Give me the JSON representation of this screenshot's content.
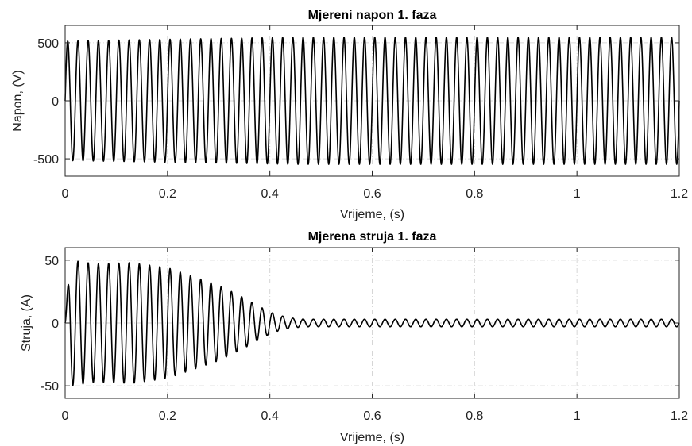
{
  "chart_data": [
    {
      "type": "line",
      "title": "Mjereni napon 1. faza",
      "xlabel": "Vrijeme, (s)",
      "ylabel": "Napon, (V)",
      "xlim": [
        0,
        1.2
      ],
      "ylim": [
        -650,
        650
      ],
      "xticks": [
        0,
        0.2,
        0.4,
        0.6,
        0.8,
        1,
        1.2
      ],
      "xtick_labels": [
        "0",
        "0.2",
        "0.4",
        "0.6",
        "0.8",
        "1",
        "1.2"
      ],
      "yticks": [
        -500,
        0,
        500
      ],
      "ytick_labels": [
        "-500",
        "0",
        "500"
      ],
      "grid": true,
      "series": [
        {
          "signal": "sinusoid",
          "frequency_hz": 50,
          "envelope": {
            "t": [
              0,
              0.2,
              0.45,
              1.2
            ],
            "amplitude": [
              515,
              530,
              548,
              548
            ]
          },
          "offset": 0,
          "color": "#000000"
        }
      ]
    },
    {
      "type": "line",
      "title": "Mjerena struja 1. faza",
      "xlabel": "Vrijeme, (s)",
      "ylabel": "Struja, (A)",
      "xlim": [
        0,
        1.2
      ],
      "ylim": [
        -60,
        60
      ],
      "xticks": [
        0,
        0.2,
        0.4,
        0.6,
        0.8,
        1,
        1.2
      ],
      "xtick_labels": [
        "0",
        "0.2",
        "0.4",
        "0.6",
        "0.8",
        "1",
        "1.2"
      ],
      "yticks": [
        -50,
        0,
        50
      ],
      "ytick_labels": [
        "-50",
        "0",
        "50"
      ],
      "grid": true,
      "series": [
        {
          "signal": "sinusoid",
          "frequency_hz": 50,
          "envelope": {
            "t": [
              0,
              0.01,
              0.06,
              0.13,
              0.2,
              0.25,
              0.3,
              0.35,
              0.38,
              0.41,
              0.44,
              0.47,
              1.2
            ],
            "amplitude": [
              5,
              50,
              47,
              48,
              44,
              37,
              30,
              20,
              13,
              7,
              4,
              3,
              3
            ]
          },
          "offset": 0,
          "color": "#000000"
        }
      ]
    }
  ]
}
